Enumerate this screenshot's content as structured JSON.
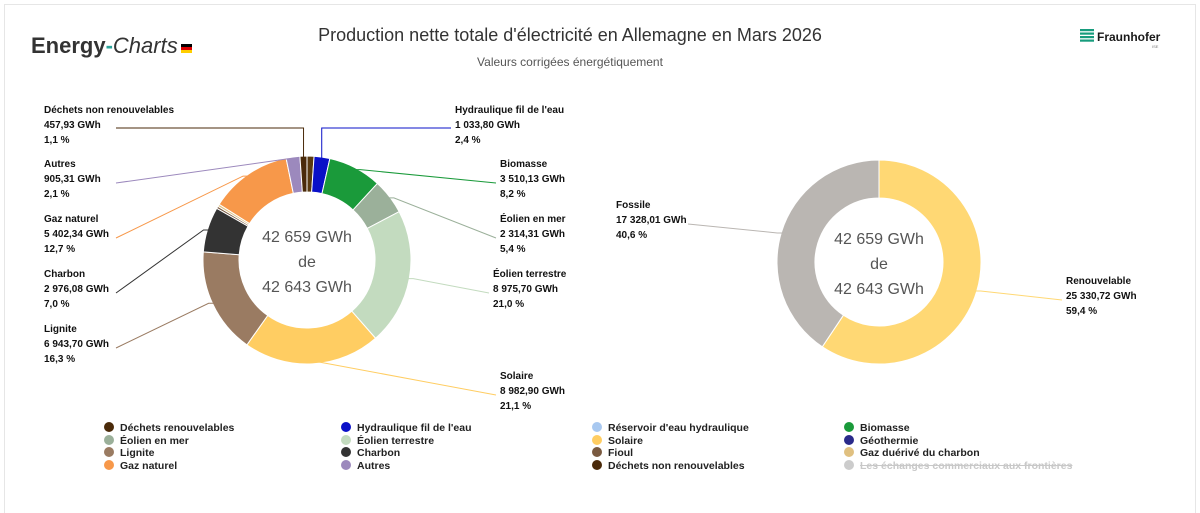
{
  "header": {
    "logo_part1": "Energy",
    "logo_part2": "-",
    "logo_part3": "Charts",
    "brand": "Fraunhofer",
    "brand_sub": "ISE"
  },
  "chart_data": [
    {
      "type": "pie",
      "donut": true,
      "title": "Production nette totale d'électricité en Allemagne en Mars 2026",
      "subtitle": "Valeurs corrigées énergétiquement",
      "center_text": [
        "42 659 GWh",
        "de",
        "42 643 GWh"
      ],
      "unit": "GWh",
      "slices": [
        {
          "name": "Déchets renouvelables",
          "value": 457.93,
          "value_label": "",
          "percent_label": "",
          "color": "#5a3a10",
          "label_shown": false
        },
        {
          "name": "Hydraulique fil de l'eau",
          "value": 1033.8,
          "value_label": "1 033,80 GWh",
          "percent_label": "2,4 %",
          "color": "#0a10c8",
          "label_shown": true
        },
        {
          "name": "Biomasse",
          "value": 3510.13,
          "value_label": "3 510,13 GWh",
          "percent_label": "8,2 %",
          "color": "#1a9a3a",
          "label_shown": true
        },
        {
          "name": "Éolien en mer",
          "value": 2314.31,
          "value_label": "2 314,31 GWh",
          "percent_label": "5,4 %",
          "color": "#9bb09a",
          "label_shown": true
        },
        {
          "name": "Éolien terrestre",
          "value": 8975.7,
          "value_label": "8 975,70 GWh",
          "percent_label": "21,0 %",
          "color": "#c3dbbf",
          "label_shown": true
        },
        {
          "name": "Solaire",
          "value": 8982.9,
          "value_label": "8 982,90 GWh",
          "percent_label": "21,1 %",
          "color": "#ffcd62",
          "label_shown": true
        },
        {
          "name": "Lignite",
          "value": 6943.7,
          "value_label": "6 943,70 GWh",
          "percent_label": "16,3 %",
          "color": "#9a7b62",
          "label_shown": true
        },
        {
          "name": "Charbon",
          "value": 2976.08,
          "value_label": "2 976,08 GWh",
          "percent_label": "7,0 %",
          "color": "#333333",
          "label_shown": true
        },
        {
          "name": "Fioul",
          "value": 150.0,
          "value_label": "",
          "percent_label": "",
          "color": "#7a5a40",
          "label_shown": false
        },
        {
          "name": "Gaz duérivé du charbon",
          "value": 150.0,
          "value_label": "",
          "percent_label": "",
          "color": "#e0c080",
          "label_shown": false
        },
        {
          "name": "Gaz naturel",
          "value": 5402.34,
          "value_label": "5 402,34 GWh",
          "percent_label": "12,7 %",
          "color": "#f7984a",
          "label_shown": true
        },
        {
          "name": "Autres",
          "value": 905.31,
          "value_label": "905,31 GWh",
          "percent_label": "2,1 %",
          "color": "#9c89bd",
          "label_shown": true
        },
        {
          "name": "Déchets non renouvelables",
          "value": 457.93,
          "value_label": "457,93 GWh",
          "percent_label": "1,1 %",
          "color": "#4a2a0a",
          "label_shown": true
        }
      ]
    },
    {
      "type": "pie",
      "donut": true,
      "center_text": [
        "42 659 GWh",
        "de",
        "42 643 GWh"
      ],
      "unit": "GWh",
      "slices": [
        {
          "name": "Renouvelable",
          "value": 25330.72,
          "value_label": "25 330,72 GWh",
          "percent_label": "59,4 %",
          "color": "#ffd874"
        },
        {
          "name": "Fossile",
          "value": 17328.01,
          "value_label": "17 328,01 GWh",
          "percent_label": "40,6 %",
          "color": "#bab6b2"
        }
      ]
    }
  ],
  "legend": [
    {
      "name": "Déchets renouvelables",
      "color": "#4a2a0a",
      "hidden": false
    },
    {
      "name": "Hydraulique fil de l'eau",
      "color": "#0a10c8",
      "hidden": false
    },
    {
      "name": "Réservoir d'eau hydraulique",
      "color": "#a8c8f0",
      "hidden": false
    },
    {
      "name": "Biomasse",
      "color": "#1a9a3a",
      "hidden": false
    },
    {
      "name": "Éolien en mer",
      "color": "#9bb09a",
      "hidden": false
    },
    {
      "name": "Éolien terrestre",
      "color": "#c3dbbf",
      "hidden": false
    },
    {
      "name": "Solaire",
      "color": "#ffcd62",
      "hidden": false
    },
    {
      "name": "Géothermie",
      "color": "#2a2a8a",
      "hidden": false
    },
    {
      "name": "Lignite",
      "color": "#9a7b62",
      "hidden": false
    },
    {
      "name": "Charbon",
      "color": "#333333",
      "hidden": false
    },
    {
      "name": "Fioul",
      "color": "#7a5a40",
      "hidden": false
    },
    {
      "name": "Gaz duérivé du charbon",
      "color": "#e0c080",
      "hidden": false
    },
    {
      "name": "Gaz naturel",
      "color": "#f7984a",
      "hidden": false
    },
    {
      "name": "Autres",
      "color": "#9c89bd",
      "hidden": false
    },
    {
      "name": "Déchets non renouvelables",
      "color": "#4a2a0a",
      "hidden": false
    },
    {
      "name": "Les échanges commerciaux aux frontières",
      "color": "#cccccc",
      "hidden": true
    }
  ]
}
